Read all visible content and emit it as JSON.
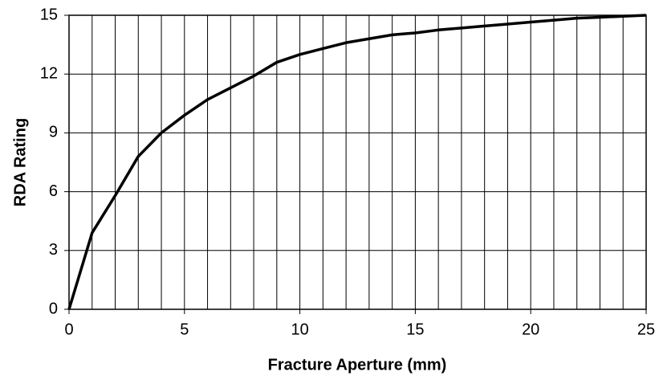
{
  "chart_data": {
    "type": "line",
    "xlabel": "Fracture Aperture (mm)",
    "ylabel": "RDA Rating",
    "x": [
      0,
      1,
      2,
      3,
      4,
      5,
      6,
      7,
      8,
      9,
      10,
      11,
      12,
      13,
      14,
      15,
      16,
      17,
      18,
      19,
      20,
      21,
      22,
      23,
      24,
      25
    ],
    "series": [
      {
        "color": "#000000",
        "values": [
          0,
          3.9,
          5.8,
          7.8,
          9.0,
          9.9,
          10.7,
          11.3,
          11.9,
          12.6,
          13.0,
          13.3,
          13.6,
          13.8,
          14.0,
          14.1,
          14.25,
          14.35,
          14.45,
          14.55,
          14.65,
          14.75,
          14.85,
          14.9,
          14.95,
          15
        ]
      }
    ],
    "xlim": [
      0,
      25
    ],
    "ylim": [
      0,
      15
    ],
    "xticks": [
      0,
      5,
      10,
      15,
      20,
      25
    ],
    "yticks": [
      0,
      3,
      6,
      9,
      12,
      15
    ],
    "x_minor_ticks": [
      0,
      1,
      2,
      3,
      4,
      5,
      6,
      7,
      8,
      9,
      10,
      11,
      12,
      13,
      14,
      15,
      16,
      17,
      18,
      19,
      20,
      21,
      22,
      23,
      24,
      25
    ],
    "grid": true
  }
}
